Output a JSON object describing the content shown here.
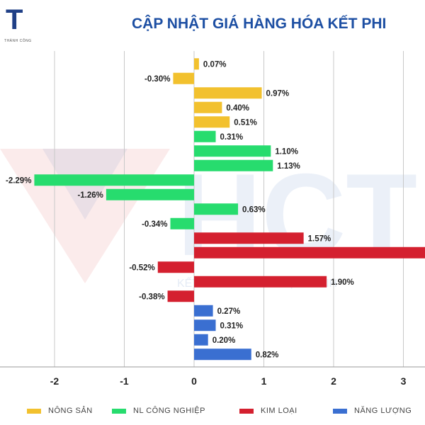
{
  "header": {
    "logo_letter": "T",
    "logo_subtext": "THÀNH CÔNG",
    "title": "CẬP NHẬT GIÁ HÀNG HÓA KẾT PHI"
  },
  "watermark": {
    "text": "HCT",
    "tagline": "KẾT NỐI CÔNG NGHỆ THÀNH"
  },
  "colors": {
    "nong_san": "#f2c12e",
    "nl_cong_nghiep": "#27dc6e",
    "kim_loai": "#d4202f",
    "nang_luong": "#3a6fd1",
    "title": "#1d4fa3",
    "grid": "#c8c8c8"
  },
  "chart_data": {
    "type": "bar",
    "orientation": "horizontal",
    "xlim": [
      -2.75,
      3.3
    ],
    "xticks": [
      -2,
      -1,
      0,
      1,
      2,
      3
    ],
    "grid": true,
    "legend_position": "bottom",
    "bars": [
      {
        "group": "nong_san",
        "value": 0.07,
        "label": "0.07%"
      },
      {
        "group": "nong_san",
        "value": -0.3,
        "label": "-0.30%"
      },
      {
        "group": "nong_san",
        "value": 0.97,
        "label": "0.97%"
      },
      {
        "group": "nong_san",
        "value": 0.4,
        "label": "0.40%"
      },
      {
        "group": "nong_san",
        "value": 0.51,
        "label": "0.51%"
      },
      {
        "group": "nl_cong_nghiep",
        "value": 0.31,
        "label": "0.31%"
      },
      {
        "group": "nl_cong_nghiep",
        "value": 1.1,
        "label": "1.10%"
      },
      {
        "group": "nl_cong_nghiep",
        "value": 1.13,
        "label": "1.13%"
      },
      {
        "group": "nl_cong_nghiep",
        "value": -2.29,
        "label": "-2.29%"
      },
      {
        "group": "nl_cong_nghiep",
        "value": -1.26,
        "label": "-1.26%"
      },
      {
        "group": "nl_cong_nghiep",
        "value": 0.63,
        "label": "0.63%"
      },
      {
        "group": "nl_cong_nghiep",
        "value": -0.34,
        "label": "-0.34%"
      },
      {
        "group": "kim_loai",
        "value": 1.57,
        "label": "1.57%"
      },
      {
        "group": "kim_loai",
        "value": 3.4,
        "label": ""
      },
      {
        "group": "kim_loai",
        "value": -0.52,
        "label": "-0.52%"
      },
      {
        "group": "kim_loai",
        "value": 1.9,
        "label": "1.90%"
      },
      {
        "group": "kim_loai",
        "value": -0.38,
        "label": "-0.38%"
      },
      {
        "group": "nang_luong",
        "value": 0.27,
        "label": "0.27%"
      },
      {
        "group": "nang_luong",
        "value": 0.31,
        "label": "0.31%"
      },
      {
        "group": "nang_luong",
        "value": 0.2,
        "label": "0.20%"
      },
      {
        "group": "nang_luong",
        "value": 0.82,
        "label": "0.82%"
      }
    ],
    "legend": [
      {
        "key": "nong_san",
        "label": "NÔNG SẢN"
      },
      {
        "key": "nl_cong_nghiep",
        "label": "NL CÔNG NGHIỆP"
      },
      {
        "key": "kim_loai",
        "label": "KIM LOẠI"
      },
      {
        "key": "nang_luong",
        "label": "NĂNG LƯỢNG"
      }
    ]
  }
}
